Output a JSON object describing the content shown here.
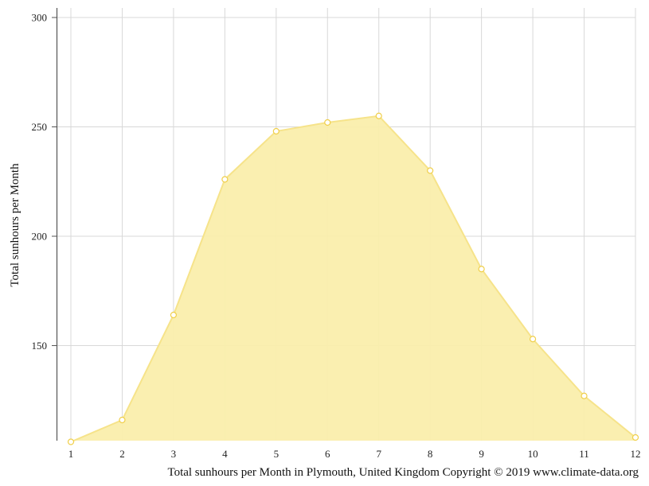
{
  "chart_data": {
    "type": "area",
    "x": [
      1,
      2,
      3,
      4,
      5,
      6,
      7,
      8,
      9,
      10,
      11,
      12
    ],
    "values": [
      106,
      116,
      164,
      226,
      248,
      252,
      255,
      230,
      185,
      153,
      127,
      108
    ],
    "xlabel": "",
    "ylabel": "Total sunhours per Month",
    "caption": "Total sunhours per Month in Plymouth, United Kingdom Copyright © 2019 www.climate-data.org",
    "xlim": [
      1,
      12
    ],
    "ylim": [
      106,
      305
    ],
    "yticks": [
      150,
      200,
      250,
      300
    ],
    "grid": true,
    "colors": {
      "fill": "#faeeac",
      "line": "#f6e38a",
      "marker_stroke": "#f0cf4a",
      "marker_fill": "#ffffff",
      "grid": "#d8d8d8",
      "axis": "#555555"
    }
  }
}
